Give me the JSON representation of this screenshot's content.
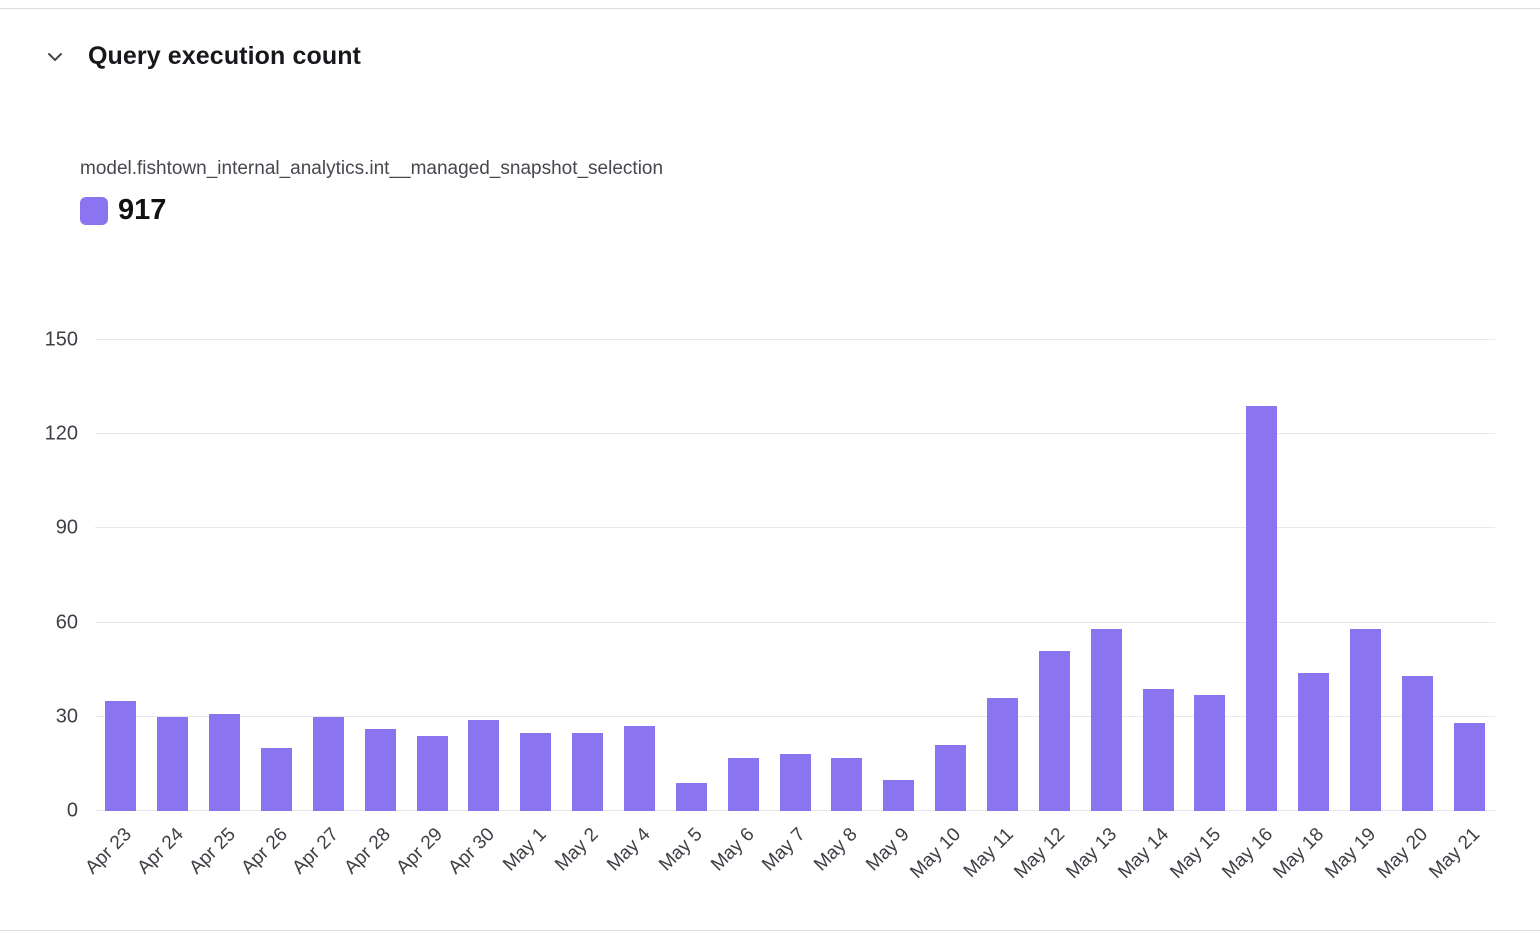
{
  "header": {
    "title": "Query execution count"
  },
  "legend": {
    "series_name": "model.fishtown_internal_analytics.int__managed_snapshot_selection",
    "total": "917",
    "swatch_color": "#8b74f0"
  },
  "colors": {
    "bar": "#8b74f0",
    "gridline": "#e8e8eb",
    "axis_text": "#3f3f46"
  },
  "chart_data": {
    "type": "bar",
    "title": "Query execution count",
    "series_label": "917",
    "categories": [
      "Apr 23",
      "Apr 24",
      "Apr 25",
      "Apr 26",
      "Apr 27",
      "Apr 28",
      "Apr 29",
      "Apr 30",
      "May 1",
      "May 2",
      "May 4",
      "May 5",
      "May 6",
      "May 7",
      "May 8",
      "May 9",
      "May 10",
      "May 11",
      "May 12",
      "May 13",
      "May 14",
      "May 15",
      "May 16",
      "May 18",
      "May 19",
      "May 20",
      "May 21"
    ],
    "values": [
      35,
      30,
      31,
      20,
      30,
      26,
      24,
      29,
      25,
      25,
      27,
      9,
      17,
      18,
      17,
      10,
      21,
      36,
      51,
      58,
      39,
      37,
      129,
      44,
      58,
      43,
      28
    ],
    "xlabel": "",
    "ylabel": "",
    "ylim": [
      0,
      150
    ],
    "yticks": [
      0,
      30,
      60,
      90,
      120,
      150
    ],
    "grid": true,
    "legend_position": "top-left",
    "bar_color": "#8b74f0"
  }
}
